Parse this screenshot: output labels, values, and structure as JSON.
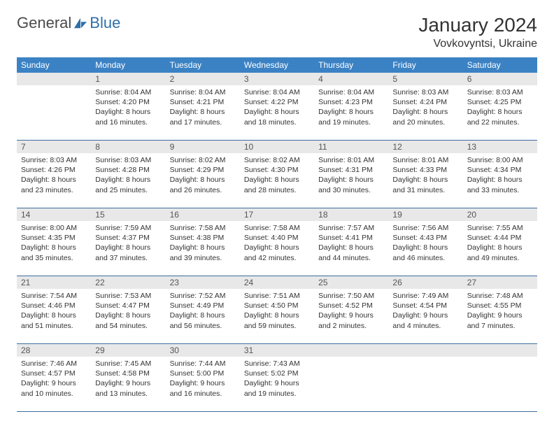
{
  "logo": {
    "text1": "General",
    "text2": "Blue",
    "color1": "#555555",
    "color2": "#2f6fa8"
  },
  "title": "January 2024",
  "location": "Vovkovyntsi, Ukraine",
  "header_bg": "#3b82c4",
  "row_border": "#3b6ea0",
  "daynum_bg": "#e8e8e8",
  "dow": [
    "Sunday",
    "Monday",
    "Tuesday",
    "Wednesday",
    "Thursday",
    "Friday",
    "Saturday"
  ],
  "leading_blanks": 1,
  "labels": {
    "sunrise": "Sunrise:",
    "sunset": "Sunset:",
    "daylight": "Daylight:"
  },
  "days": [
    {
      "n": 1,
      "sr": "8:04 AM",
      "ss": "4:20 PM",
      "dl": "8 hours and 16 minutes."
    },
    {
      "n": 2,
      "sr": "8:04 AM",
      "ss": "4:21 PM",
      "dl": "8 hours and 17 minutes."
    },
    {
      "n": 3,
      "sr": "8:04 AM",
      "ss": "4:22 PM",
      "dl": "8 hours and 18 minutes."
    },
    {
      "n": 4,
      "sr": "8:04 AM",
      "ss": "4:23 PM",
      "dl": "8 hours and 19 minutes."
    },
    {
      "n": 5,
      "sr": "8:03 AM",
      "ss": "4:24 PM",
      "dl": "8 hours and 20 minutes."
    },
    {
      "n": 6,
      "sr": "8:03 AM",
      "ss": "4:25 PM",
      "dl": "8 hours and 22 minutes."
    },
    {
      "n": 7,
      "sr": "8:03 AM",
      "ss": "4:26 PM",
      "dl": "8 hours and 23 minutes."
    },
    {
      "n": 8,
      "sr": "8:03 AM",
      "ss": "4:28 PM",
      "dl": "8 hours and 25 minutes."
    },
    {
      "n": 9,
      "sr": "8:02 AM",
      "ss": "4:29 PM",
      "dl": "8 hours and 26 minutes."
    },
    {
      "n": 10,
      "sr": "8:02 AM",
      "ss": "4:30 PM",
      "dl": "8 hours and 28 minutes."
    },
    {
      "n": 11,
      "sr": "8:01 AM",
      "ss": "4:31 PM",
      "dl": "8 hours and 30 minutes."
    },
    {
      "n": 12,
      "sr": "8:01 AM",
      "ss": "4:33 PM",
      "dl": "8 hours and 31 minutes."
    },
    {
      "n": 13,
      "sr": "8:00 AM",
      "ss": "4:34 PM",
      "dl": "8 hours and 33 minutes."
    },
    {
      "n": 14,
      "sr": "8:00 AM",
      "ss": "4:35 PM",
      "dl": "8 hours and 35 minutes."
    },
    {
      "n": 15,
      "sr": "7:59 AM",
      "ss": "4:37 PM",
      "dl": "8 hours and 37 minutes."
    },
    {
      "n": 16,
      "sr": "7:58 AM",
      "ss": "4:38 PM",
      "dl": "8 hours and 39 minutes."
    },
    {
      "n": 17,
      "sr": "7:58 AM",
      "ss": "4:40 PM",
      "dl": "8 hours and 42 minutes."
    },
    {
      "n": 18,
      "sr": "7:57 AM",
      "ss": "4:41 PM",
      "dl": "8 hours and 44 minutes."
    },
    {
      "n": 19,
      "sr": "7:56 AM",
      "ss": "4:43 PM",
      "dl": "8 hours and 46 minutes."
    },
    {
      "n": 20,
      "sr": "7:55 AM",
      "ss": "4:44 PM",
      "dl": "8 hours and 49 minutes."
    },
    {
      "n": 21,
      "sr": "7:54 AM",
      "ss": "4:46 PM",
      "dl": "8 hours and 51 minutes."
    },
    {
      "n": 22,
      "sr": "7:53 AM",
      "ss": "4:47 PM",
      "dl": "8 hours and 54 minutes."
    },
    {
      "n": 23,
      "sr": "7:52 AM",
      "ss": "4:49 PM",
      "dl": "8 hours and 56 minutes."
    },
    {
      "n": 24,
      "sr": "7:51 AM",
      "ss": "4:50 PM",
      "dl": "8 hours and 59 minutes."
    },
    {
      "n": 25,
      "sr": "7:50 AM",
      "ss": "4:52 PM",
      "dl": "9 hours and 2 minutes."
    },
    {
      "n": 26,
      "sr": "7:49 AM",
      "ss": "4:54 PM",
      "dl": "9 hours and 4 minutes."
    },
    {
      "n": 27,
      "sr": "7:48 AM",
      "ss": "4:55 PM",
      "dl": "9 hours and 7 minutes."
    },
    {
      "n": 28,
      "sr": "7:46 AM",
      "ss": "4:57 PM",
      "dl": "9 hours and 10 minutes."
    },
    {
      "n": 29,
      "sr": "7:45 AM",
      "ss": "4:58 PM",
      "dl": "9 hours and 13 minutes."
    },
    {
      "n": 30,
      "sr": "7:44 AM",
      "ss": "5:00 PM",
      "dl": "9 hours and 16 minutes."
    },
    {
      "n": 31,
      "sr": "7:43 AM",
      "ss": "5:02 PM",
      "dl": "9 hours and 19 minutes."
    }
  ]
}
